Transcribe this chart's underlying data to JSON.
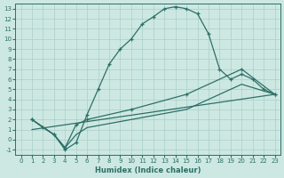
{
  "xlabel": "Humidex (Indice chaleur)",
  "bg_color": "#cde8e2",
  "grid_color": "#aacfc8",
  "line_color": "#2d7068",
  "xlim": [
    -0.5,
    23.5
  ],
  "ylim": [
    -1.5,
    13.5
  ],
  "xticks": [
    0,
    1,
    2,
    3,
    4,
    5,
    6,
    7,
    8,
    9,
    10,
    11,
    12,
    13,
    14,
    15,
    16,
    17,
    18,
    19,
    20,
    21,
    22,
    23
  ],
  "yticks": [
    -1,
    0,
    1,
    2,
    3,
    4,
    5,
    6,
    7,
    8,
    9,
    10,
    11,
    12,
    13
  ],
  "line1_x": [
    1,
    2,
    3,
    4,
    5,
    6,
    7,
    8,
    9,
    10,
    11,
    12,
    13,
    14,
    15,
    16,
    17,
    18,
    19,
    20,
    21,
    22,
    23
  ],
  "line1_y": [
    2.0,
    1.2,
    0.5,
    -1.0,
    -0.3,
    2.5,
    5.0,
    7.5,
    9.0,
    10.0,
    11.5,
    12.2,
    13.0,
    13.2,
    13.0,
    12.5,
    10.5,
    7.0,
    6.0,
    6.5,
    6.0,
    5.0,
    4.5
  ],
  "line2_x": [
    1,
    3,
    4,
    5,
    6,
    10,
    15,
    20,
    23
  ],
  "line2_y": [
    2.0,
    0.5,
    -0.8,
    1.5,
    2.0,
    3.0,
    4.5,
    7.0,
    4.5
  ],
  "line3_x": [
    1,
    3,
    4,
    5,
    6,
    10,
    15,
    20,
    23
  ],
  "line3_y": [
    2.0,
    0.5,
    -0.8,
    0.5,
    1.2,
    2.0,
    3.0,
    5.5,
    4.5
  ],
  "line4_x": [
    1,
    23
  ],
  "line4_y": [
    1.0,
    4.5
  ]
}
